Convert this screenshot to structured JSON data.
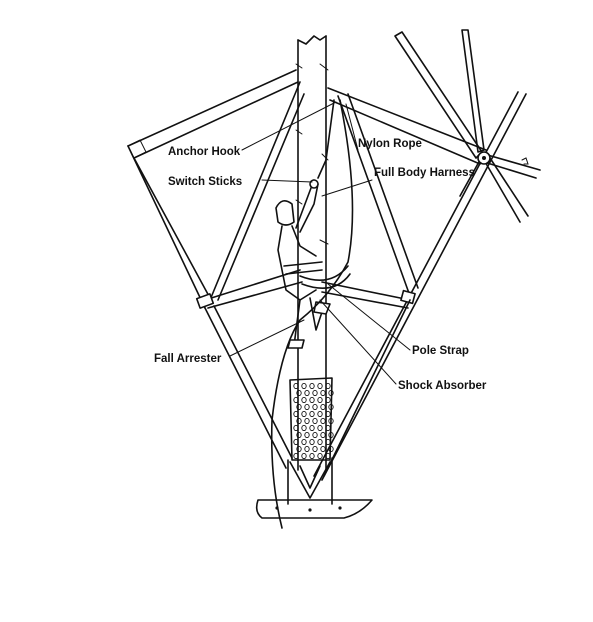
{
  "labels": {
    "anchor_hook": "Anchor Hook",
    "nylon_rope": "Nylon Rope",
    "switch_sticks": "Switch  Sticks",
    "full_body_harness": "Full Body Harness",
    "fall_arrester": "Fall Arrester",
    "pole_strap": "Pole Strap",
    "shock_absorber": "Shock Absorber"
  }
}
